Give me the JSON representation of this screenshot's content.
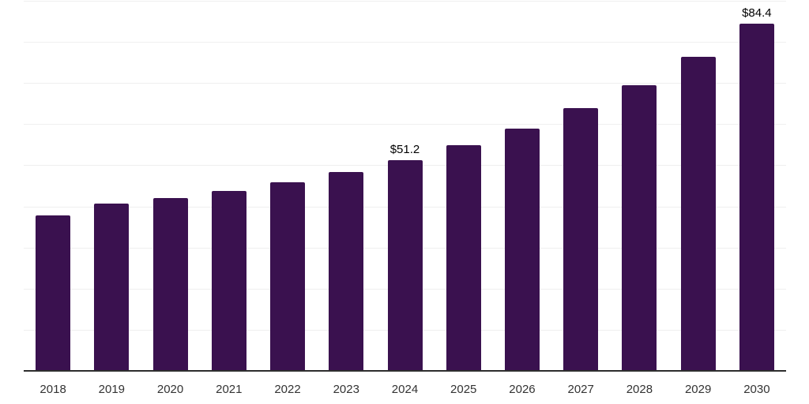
{
  "chart_data": {
    "type": "bar",
    "title": "",
    "categories": [
      "2018",
      "2019",
      "2020",
      "2021",
      "2022",
      "2023",
      "2024",
      "2025",
      "2026",
      "2027",
      "2028",
      "2029",
      "2030"
    ],
    "values": [
      37.7,
      40.6,
      42.0,
      43.8,
      45.8,
      48.3,
      51.2,
      54.8,
      58.9,
      63.8,
      69.5,
      76.4,
      84.4
    ],
    "annotations": [
      {
        "category": "2024",
        "text": "$51.2"
      },
      {
        "category": "2030",
        "text": "$84.4"
      }
    ],
    "xlabel": "",
    "ylabel": "",
    "ylim": [
      0,
      90
    ],
    "grid_step": 10,
    "grid": "horizontal",
    "legend_position": "none",
    "colors": {
      "bar": "#3A114F",
      "gridline": "#EFEFEF",
      "axis_line": "#2E2E2E",
      "tick_label": "#333333",
      "annotation": "#000000",
      "background": "#FFFFFF"
    }
  }
}
